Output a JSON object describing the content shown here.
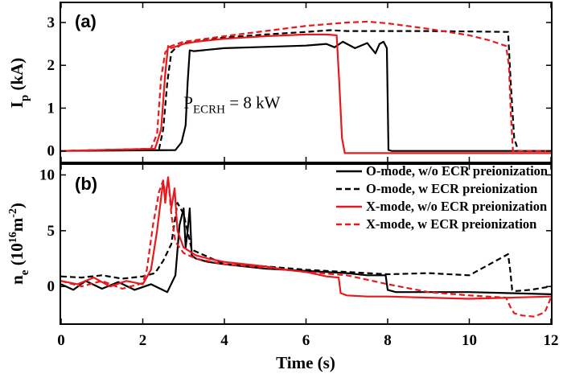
{
  "colors": {
    "o_mode": "#000000",
    "x_mode": "#e8191c",
    "frame": "#000000",
    "background": "#ffffff"
  },
  "chart_data": [
    {
      "type": "line",
      "panel_label": "(a)",
      "ylabel_main": "I",
      "ylabel_sub": "p",
      "ylabel_unit": " (kA)",
      "xlim": [
        0,
        12
      ],
      "ylim": [
        -0.25,
        3.45
      ],
      "yticks": [
        "0",
        "1",
        "2",
        "3"
      ],
      "ytick_values": [
        0,
        1,
        2,
        3
      ],
      "annotation": {
        "main": "P",
        "sub": "ECRH",
        "rest": " = 8 kW",
        "x": 3.0,
        "y": 1.0
      },
      "series": [
        {
          "name": "O-mode, w/o ECR preionization",
          "color": "#000000",
          "dash": "solid",
          "x": [
            0,
            2.8,
            2.95,
            3.05,
            3.1,
            3.15,
            3.25,
            4,
            5,
            6,
            6.5,
            6.7,
            6.9,
            7.2,
            7.5,
            7.7,
            7.8,
            7.9,
            7.98,
            8.02,
            8.1,
            12
          ],
          "y": [
            0,
            0.02,
            0.2,
            0.6,
            1.6,
            2.35,
            2.33,
            2.4,
            2.43,
            2.46,
            2.5,
            2.42,
            2.55,
            2.4,
            2.52,
            2.28,
            2.5,
            2.55,
            2.4,
            0.02,
            0.0,
            0.0
          ]
        },
        {
          "name": "O-mode, w ECR preionization",
          "color": "#000000",
          "dash": "dashed",
          "x": [
            0,
            2.4,
            2.5,
            2.6,
            2.7,
            2.8,
            3,
            4,
            5,
            6,
            6.6,
            7,
            8,
            9,
            10,
            10.95,
            11.02,
            11.1,
            11.2,
            12
          ],
          "y": [
            0,
            0.05,
            0.5,
            1.6,
            2.3,
            2.4,
            2.52,
            2.65,
            2.72,
            2.78,
            2.82,
            2.8,
            2.8,
            2.8,
            2.79,
            2.78,
            1.5,
            0.3,
            0.0,
            0.0
          ]
        },
        {
          "name": "X-mode, w/o ECR preionization",
          "color": "#e8191c",
          "dash": "solid",
          "x": [
            0,
            2.3,
            2.45,
            2.55,
            2.62,
            2.7,
            2.85,
            3,
            3.3,
            4,
            5,
            6,
            6.5,
            6.75,
            6.82,
            6.88,
            6.95,
            12
          ],
          "y": [
            0,
            0.05,
            0.5,
            1.8,
            2.45,
            2.4,
            2.45,
            2.5,
            2.55,
            2.62,
            2.68,
            2.72,
            2.72,
            2.7,
            1.5,
            0.3,
            -0.05,
            -0.05
          ]
        },
        {
          "name": "X-mode, w ECR preionization",
          "color": "#e8191c",
          "dash": "dashed",
          "x": [
            0,
            2.2,
            2.35,
            2.45,
            2.55,
            2.7,
            3,
            4,
            5,
            6,
            7,
            7.5,
            8,
            9,
            10,
            10.5,
            10.9,
            10.97,
            11.02,
            11.07,
            12
          ],
          "y": [
            0,
            0.05,
            0.4,
            1.7,
            2.3,
            2.45,
            2.55,
            2.68,
            2.8,
            2.92,
            3.0,
            3.02,
            2.98,
            2.85,
            2.7,
            2.58,
            2.45,
            2.0,
            0.8,
            0.0,
            0.0
          ]
        }
      ]
    },
    {
      "type": "line",
      "panel_label": "(b)",
      "ylabel_main": "n",
      "ylabel_sub": "e",
      "ylabel_mid": " (10",
      "ylabel_sup1": "16",
      "ylabel_mid2": "m",
      "ylabel_sup2": "-2",
      "ylabel_end": ")",
      "xlabel": "Time (s)",
      "xlim": [
        0,
        12
      ],
      "ylim": [
        -3.3,
        10.9
      ],
      "xticks": [
        "0",
        "2",
        "4",
        "6",
        "8",
        "10",
        "12"
      ],
      "xtick_values": [
        0,
        2,
        4,
        6,
        8,
        10,
        12
      ],
      "yticks": [
        "0",
        "5",
        "10"
      ],
      "ytick_values": [
        0,
        5,
        10
      ],
      "legend_position": "top-right",
      "series": [
        {
          "name": "O-mode, w/o ECR preionization",
          "color": "#000000",
          "dash": "solid",
          "x": [
            0,
            0.3,
            0.6,
            1,
            1.4,
            1.8,
            2.2,
            2.6,
            2.8,
            2.9,
            3.0,
            3.05,
            3.1,
            3.15,
            3.2,
            3.3,
            3.6,
            4,
            5,
            6,
            7,
            7.5,
            7.95,
            8.0,
            8.2,
            9,
            10,
            11,
            12
          ],
          "y": [
            0.2,
            -0.3,
            0.5,
            -0.2,
            0.4,
            -0.3,
            0.2,
            -0.5,
            1.0,
            5.5,
            7.0,
            3.5,
            5.0,
            7.0,
            2.8,
            2.5,
            2.2,
            2.0,
            1.6,
            1.4,
            1.2,
            1.0,
            1.0,
            -0.3,
            -0.5,
            -0.5,
            -0.5,
            -0.6,
            -0.7
          ]
        },
        {
          "name": "O-mode, w ECR preionization",
          "color": "#000000",
          "dash": "dashed",
          "x": [
            0,
            0.5,
            1,
            1.5,
            2,
            2.3,
            2.5,
            2.7,
            2.85,
            3.0,
            3.2,
            4,
            5,
            6,
            7,
            8,
            9,
            10,
            10.95,
            11.0,
            11.05,
            11.15,
            11.5,
            12
          ],
          "y": [
            0.9,
            0.8,
            1.0,
            0.7,
            0.9,
            1.2,
            2.3,
            3.8,
            7.5,
            6.5,
            3.3,
            2.0,
            1.8,
            1.5,
            1.3,
            1.1,
            1.2,
            1.0,
            2.9,
            1.5,
            -0.3,
            -0.4,
            -0.3,
            0.0
          ]
        },
        {
          "name": "X-mode, w/o ECR preionization",
          "color": "#e8191c",
          "dash": "solid",
          "x": [
            0,
            0.4,
            0.8,
            1.2,
            1.6,
            2.0,
            2.2,
            2.35,
            2.5,
            2.55,
            2.62,
            2.7,
            2.78,
            2.85,
            3.0,
            3.3,
            3.6,
            4,
            4.5,
            5,
            5.5,
            6,
            6.5,
            6.8,
            6.85,
            7,
            7.5,
            8,
            9,
            10,
            11,
            12
          ],
          "y": [
            0.5,
            0.2,
            0.8,
            0.0,
            0.5,
            0.2,
            1.5,
            5.0,
            9.5,
            7.5,
            9.8,
            7.0,
            8.8,
            5.0,
            3.5,
            2.8,
            2.5,
            2.2,
            2.0,
            1.8,
            1.5,
            1.3,
            0.9,
            0.8,
            -0.6,
            -0.8,
            -0.9,
            -0.9,
            -1.0,
            -1.1,
            -1.0,
            -0.9
          ]
        },
        {
          "name": "X-mode, w ECR preionization",
          "color": "#e8191c",
          "dash": "dashed",
          "x": [
            0,
            0.5,
            1,
            1.5,
            2,
            2.1,
            2.25,
            2.4,
            2.5,
            2.55,
            2.62,
            2.7,
            2.8,
            3.0,
            3.3,
            4,
            5,
            6,
            7,
            8,
            9,
            10,
            10.9,
            11.0,
            11.1,
            11.3,
            11.6,
            11.85,
            12
          ],
          "y": [
            0.5,
            0.0,
            0.5,
            -0.2,
            0.3,
            1.5,
            5.5,
            8.5,
            9.5,
            8.0,
            9.7,
            6.5,
            4.0,
            3.0,
            2.5,
            2.0,
            1.7,
            1.3,
            1.0,
            0.2,
            -0.5,
            -0.8,
            -1.0,
            -1.8,
            -2.4,
            -2.6,
            -2.7,
            -2.3,
            -1.0
          ]
        }
      ]
    }
  ]
}
